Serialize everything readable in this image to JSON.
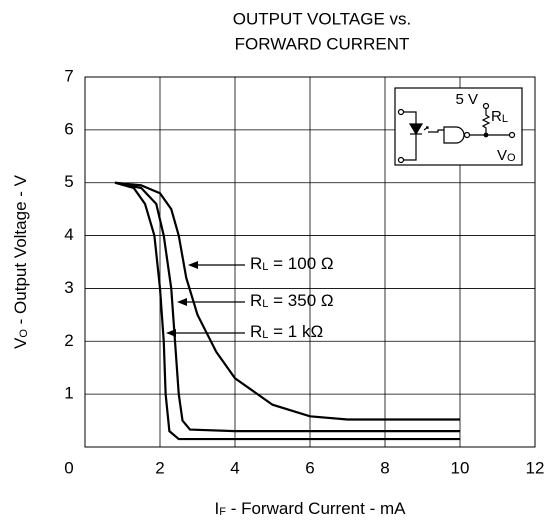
{
  "chart_data": {
    "type": "line",
    "title": [
      "OUTPUT VOLTAGE vs.",
      "FORWARD CURRENT"
    ],
    "x_label": [
      "I",
      "F",
      " - Forward Current - mA"
    ],
    "y_label": [
      "V",
      "O",
      " - Output Voltage - V"
    ],
    "xlim": [
      0,
      12
    ],
    "xticks": [
      0,
      2,
      4,
      6,
      8,
      10,
      12
    ],
    "ylim": [
      0,
      7
    ],
    "yticks": [
      1,
      2,
      3,
      4,
      5,
      6,
      7
    ],
    "grid": true,
    "color": "#000000",
    "series": [
      {
        "label": [
          "R",
          "L",
          " = 100 Ω"
        ],
        "x": [
          0.8,
          1.5,
          2.0,
          2.3,
          2.5,
          2.7,
          3.0,
          3.5,
          4.0,
          5.0,
          6.0,
          7.0,
          10.0
        ],
        "values": [
          5.0,
          4.95,
          4.8,
          4.5,
          4.0,
          3.2,
          2.5,
          1.8,
          1.3,
          0.8,
          0.58,
          0.52,
          0.52
        ]
      },
      {
        "label": [
          "R",
          "L",
          " = 350 Ω"
        ],
        "x": [
          0.8,
          1.5,
          1.9,
          2.1,
          2.3,
          2.4,
          2.5,
          2.6,
          2.8,
          4.0,
          10.0
        ],
        "values": [
          5.0,
          4.9,
          4.6,
          4.0,
          3.0,
          2.0,
          1.0,
          0.5,
          0.33,
          0.3,
          0.3
        ]
      },
      {
        "label": [
          "R",
          "L",
          " = 1 kΩ"
        ],
        "x": [
          0.8,
          1.3,
          1.6,
          1.85,
          2.0,
          2.1,
          2.15,
          2.25,
          2.5,
          10.0
        ],
        "values": [
          5.0,
          4.9,
          4.6,
          4.0,
          3.0,
          2.0,
          1.0,
          0.3,
          0.15,
          0.15
        ]
      }
    ],
    "inset": {
      "supply": "5 V",
      "resistor": [
        "R",
        "L"
      ],
      "output": [
        "V",
        "O"
      ]
    }
  }
}
